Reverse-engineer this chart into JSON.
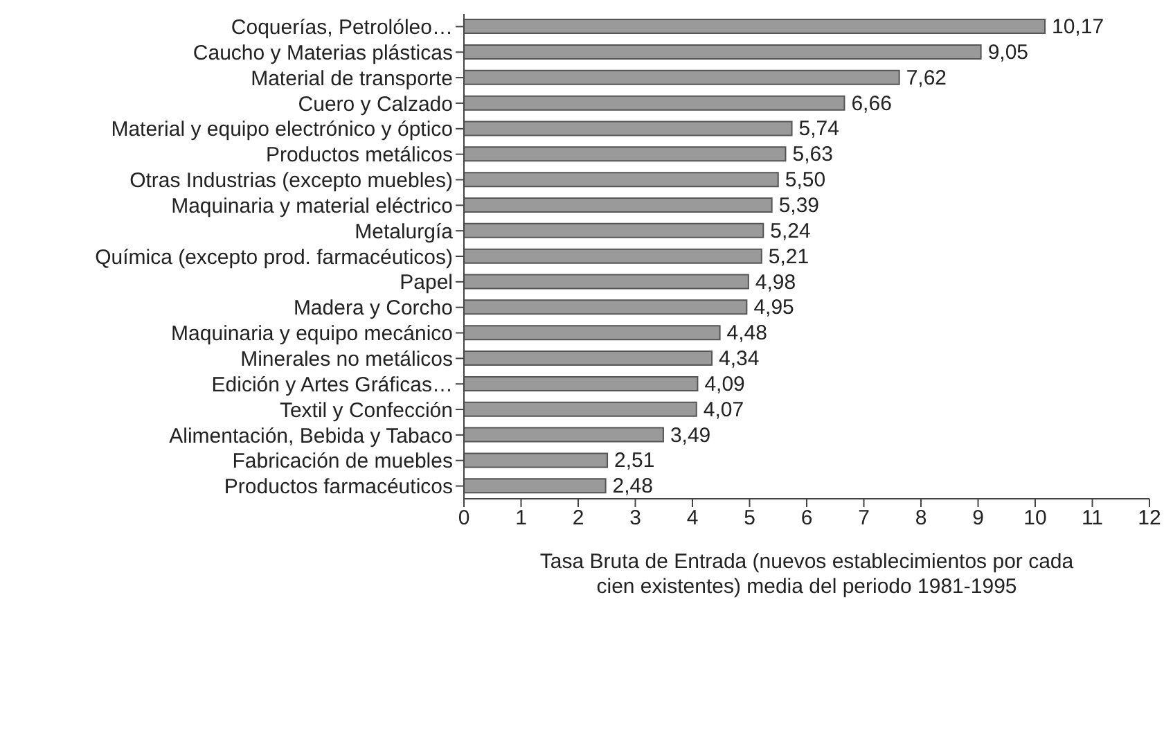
{
  "chart_data": {
    "type": "bar",
    "orientation": "horizontal",
    "xlabel": "Tasa Bruta de Entrada (nuevos establecimientos por cada cien existentes) media del periodo 1981-1995",
    "categories": [
      "Coquerías, Petrolóleo…",
      "Caucho y Materias plásticas",
      "Material de transporte",
      "Cuero y Calzado",
      "Material y equipo electrónico y óptico",
      "Productos metálicos",
      "Otras Industrias (excepto muebles)",
      "Maquinaria y material eléctrico",
      "Metalurgía",
      "Química (excepto prod. farmacéuticos)",
      "Papel",
      "Madera y Corcho",
      "Maquinaria y equipo mecánico",
      "Minerales no metálicos",
      "Edición y Artes Gráficas…",
      "Textil y Confección",
      "Alimentación, Bebida y Tabaco",
      "Fabricación de muebles",
      "Productos farmacéuticos"
    ],
    "values": [
      10.17,
      9.05,
      7.62,
      6.66,
      5.74,
      5.63,
      5.5,
      5.39,
      5.24,
      5.21,
      4.98,
      4.95,
      4.48,
      4.34,
      4.09,
      4.07,
      3.49,
      2.51,
      2.48
    ],
    "value_labels": [
      "10,17",
      "9,05",
      "7,62",
      "6,66",
      "5,74",
      "5,63",
      "5,50",
      "5,39",
      "5,24",
      "5,21",
      "4,98",
      "4,95",
      "4,48",
      "4,34",
      "4,09",
      "4,07",
      "3,49",
      "2,51",
      "2,48"
    ],
    "color": "#9a9a9a",
    "xlim": [
      0,
      12
    ],
    "xticks": [
      0,
      1,
      2,
      3,
      4,
      5,
      6,
      7,
      8,
      9,
      10,
      11,
      12
    ],
    "grid": false,
    "legend": false
  }
}
